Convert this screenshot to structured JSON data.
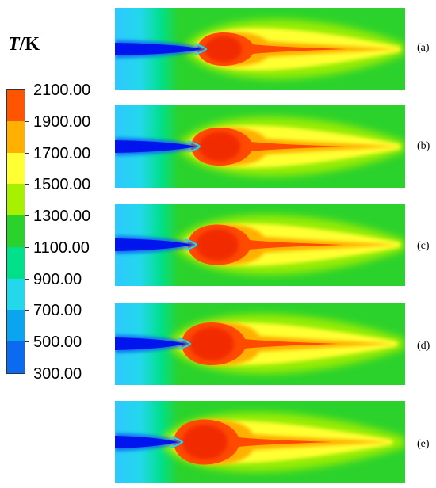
{
  "colorbar": {
    "title_symbol": "T",
    "title_unit": "/K",
    "labels": [
      "2100.00",
      "1900.00",
      "1700.00",
      "1500.00",
      "1300.00",
      "1100.00",
      "900.00",
      "700.00",
      "500.00",
      "300.00"
    ],
    "band_colors": [
      "#ff5500",
      "#ffb000",
      "#ffff33",
      "#a6f000",
      "#2bd22b",
      "#00e08a",
      "#22d8ea",
      "#0aa5ee",
      "#0a6af0",
      "#0015ee"
    ]
  },
  "panels": [
    {
      "label": "(a)"
    },
    {
      "label": "(b)"
    },
    {
      "label": "(c)"
    },
    {
      "label": "(d)"
    },
    {
      "label": "(e)"
    }
  ]
}
